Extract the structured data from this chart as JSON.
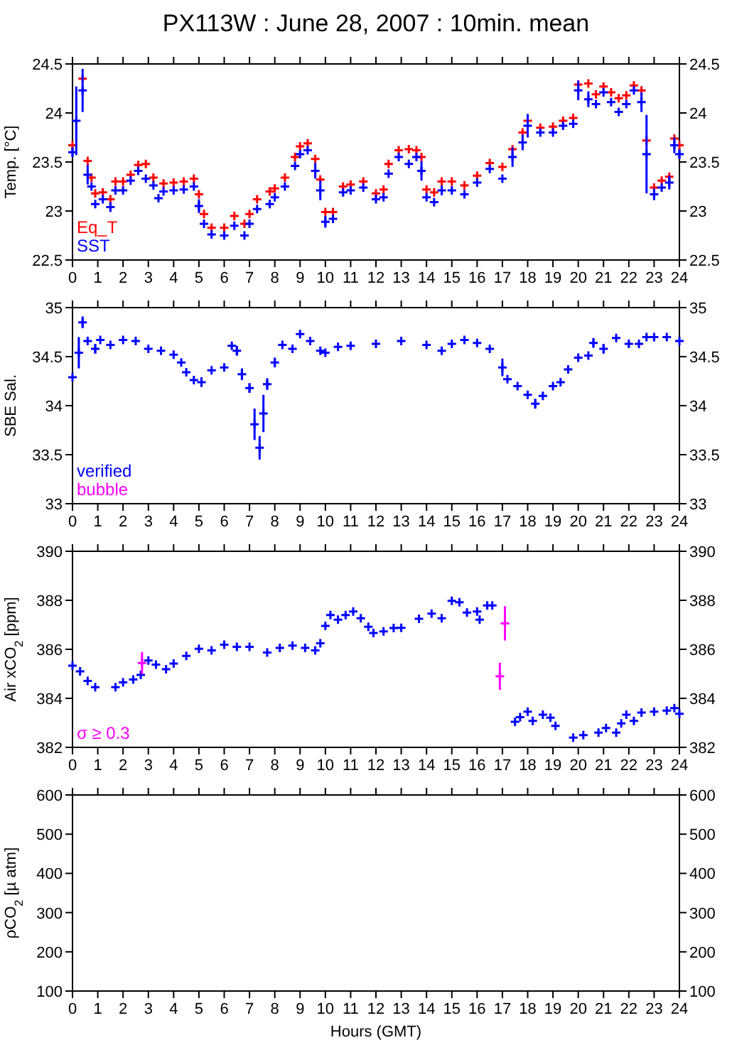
{
  "chart_data": [
    {
      "type": "scatter",
      "title": "PX113W : June 28, 2007 : 10min. mean",
      "ylabel": "Temp. [°C]",
      "marker": "cross",
      "legend": "bottom left",
      "xlim": [
        0,
        24
      ],
      "xticks": [
        0,
        1,
        2,
        3,
        4,
        5,
        6,
        7,
        8,
        9,
        10,
        11,
        12,
        13,
        14,
        15,
        16,
        17,
        18,
        19,
        20,
        21,
        22,
        23,
        24
      ],
      "ylim": [
        22.5,
        24.5
      ],
      "yticks": [
        22.5,
        23,
        23.5,
        24,
        24.5
      ],
      "y2lim": [
        22.5,
        24.5
      ],
      "y2ticks": [
        22.5,
        23,
        23.5,
        24,
        24.5
      ],
      "series": [
        {
          "name": "Eq_T",
          "color": "#ff0000",
          "x": [
            0,
            0.4,
            0.6,
            0.75,
            0.9,
            1.2,
            1.5,
            1.7,
            2.0,
            2.3,
            2.6,
            2.9,
            3.2,
            3.6,
            4.0,
            4.4,
            4.8,
            5.0,
            5.2,
            5.5,
            6.0,
            6.4,
            6.8,
            7.0,
            7.3,
            7.8,
            8.0,
            8.4,
            8.8,
            9.0,
            9.3,
            9.6,
            9.8,
            10.0,
            10.3,
            10.7,
            11.0,
            11.5,
            12.0,
            12.3,
            12.5,
            12.9,
            13.3,
            13.6,
            13.8,
            14.0,
            14.3,
            14.6,
            15.0,
            15.5,
            16.0,
            16.5,
            17.0,
            17.4,
            17.8,
            18.0,
            18.5,
            19.0,
            19.4,
            19.8,
            20.0,
            20.4,
            20.7,
            21.0,
            21.3,
            21.6,
            21.9,
            22.2,
            22.5,
            22.7,
            23.0,
            23.3,
            23.6,
            23.8,
            24
          ],
          "values": [
            23.67,
            24.35,
            23.51,
            23.34,
            23.18,
            23.19,
            23.12,
            23.3,
            23.3,
            23.37,
            23.47,
            23.48,
            23.34,
            23.28,
            23.29,
            23.3,
            23.33,
            23.17,
            22.97,
            22.83,
            22.83,
            22.95,
            22.87,
            22.97,
            23.12,
            23.2,
            23.23,
            23.34,
            23.55,
            23.66,
            23.69,
            23.53,
            23.32,
            22.99,
            22.99,
            23.25,
            23.27,
            23.3,
            23.18,
            23.22,
            23.48,
            23.62,
            23.63,
            23.62,
            23.55,
            23.22,
            23.19,
            23.3,
            23.3,
            23.26,
            23.36,
            23.49,
            23.45,
            23.63,
            23.8,
            23.92,
            23.85,
            23.86,
            23.92,
            23.95,
            24.29,
            24.3,
            24.19,
            24.27,
            24.21,
            24.15,
            24.18,
            24.28,
            24.23,
            23.72,
            23.24,
            23.31,
            23.35,
            23.74,
            23.67
          ]
        },
        {
          "name": "SST",
          "color": "#0000ff",
          "x": [
            0,
            0.15,
            0.4,
            0.6,
            0.75,
            0.9,
            1.2,
            1.5,
            1.7,
            2.0,
            2.3,
            2.6,
            2.9,
            3.2,
            3.4,
            3.6,
            4.0,
            4.4,
            4.8,
            5.0,
            5.2,
            5.5,
            6.0,
            6.4,
            6.8,
            7.0,
            7.3,
            7.8,
            8.0,
            8.4,
            8.8,
            9.0,
            9.3,
            9.6,
            9.8,
            10.0,
            10.3,
            10.7,
            11.0,
            11.5,
            12.0,
            12.3,
            12.5,
            12.9,
            13.3,
            13.6,
            13.8,
            14.0,
            14.3,
            14.6,
            15.0,
            15.5,
            16.0,
            16.5,
            17.0,
            17.4,
            17.8,
            18.0,
            18.5,
            19.0,
            19.4,
            19.8,
            20.0,
            20.4,
            20.7,
            21.0,
            21.3,
            21.6,
            21.9,
            22.2,
            22.5,
            22.7,
            23.0,
            23.3,
            23.6,
            23.8,
            24
          ],
          "values": [
            23.6,
            23.92,
            24.23,
            23.37,
            23.25,
            23.07,
            23.12,
            23.04,
            23.21,
            23.21,
            23.31,
            23.41,
            23.33,
            23.26,
            23.13,
            23.2,
            23.21,
            23.22,
            23.25,
            23.05,
            22.87,
            22.76,
            22.75,
            22.85,
            22.75,
            22.87,
            23.02,
            23.07,
            23.14,
            23.25,
            23.46,
            23.58,
            23.62,
            23.41,
            23.21,
            22.89,
            22.92,
            23.19,
            23.21,
            23.24,
            23.12,
            23.14,
            23.38,
            23.55,
            23.48,
            23.55,
            23.41,
            23.14,
            23.09,
            23.21,
            23.21,
            23.17,
            23.29,
            23.43,
            23.33,
            23.55,
            23.7,
            23.87,
            23.8,
            23.8,
            23.87,
            23.89,
            24.23,
            24.14,
            24.09,
            24.21,
            24.11,
            24.01,
            24.09,
            24.23,
            24.11,
            23.58,
            23.17,
            23.24,
            23.29,
            23.67,
            23.58
          ],
          "errors": [
            0.05,
            0.35,
            0.22,
            0.1,
            null,
            null,
            null,
            0.05,
            null,
            null,
            null,
            null,
            null,
            null,
            null,
            null,
            null,
            null,
            null,
            0.07,
            null,
            null,
            null,
            null,
            null,
            null,
            null,
            null,
            null,
            null,
            null,
            null,
            null,
            0.08,
            0.1,
            0.06,
            null,
            null,
            null,
            null,
            null,
            null,
            null,
            null,
            null,
            null,
            0.1,
            null,
            null,
            0.05,
            null,
            null,
            null,
            null,
            null,
            0.1,
            0.08,
            0.12,
            null,
            null,
            null,
            null,
            0.1,
            0.08,
            null,
            null,
            null,
            null,
            null,
            null,
            0.1,
            0.4,
            0.06,
            null,
            0.07,
            0.08,
            0.05
          ]
        }
      ]
    },
    {
      "type": "scatter",
      "ylabel": "SBE Sal.",
      "marker": "cross",
      "legend": "bottom left",
      "xlim": [
        0,
        24
      ],
      "xticks": [
        0,
        1,
        2,
        3,
        4,
        5,
        6,
        7,
        8,
        9,
        10,
        11,
        12,
        13,
        14,
        15,
        16,
        17,
        18,
        19,
        20,
        21,
        22,
        23,
        24
      ],
      "ylim": [
        33,
        35
      ],
      "yticks": [
        33,
        33.5,
        34,
        34.5,
        35
      ],
      "y2lim": [
        33,
        35
      ],
      "y2ticks": [
        33,
        33.5,
        34,
        34.5,
        35
      ],
      "series": [
        {
          "name": "verified",
          "color": "#0000ff",
          "x": [
            0,
            0.25,
            0.4,
            0.6,
            0.9,
            1.1,
            1.5,
            2,
            2.5,
            3,
            3.5,
            4,
            4.3,
            4.5,
            4.8,
            5.1,
            5.5,
            6,
            6.3,
            6.5,
            6.7,
            7.0,
            7.2,
            7.4,
            7.55,
            7.7,
            8.0,
            8.3,
            8.7,
            9.0,
            9.4,
            9.8,
            10,
            10.5,
            11,
            12,
            13,
            14,
            14.6,
            15,
            15.5,
            16,
            16.5,
            17.0,
            17.2,
            17.6,
            18.0,
            18.3,
            18.6,
            19.0,
            19.3,
            19.6,
            20,
            20.4,
            20.6,
            21,
            21.5,
            22,
            22.4,
            22.7,
            23,
            23.5,
            24
          ],
          "values": [
            34.29,
            34.54,
            34.85,
            34.66,
            34.58,
            34.67,
            34.62,
            34.67,
            34.66,
            34.58,
            34.56,
            34.52,
            34.44,
            34.34,
            34.26,
            34.24,
            34.36,
            34.39,
            34.61,
            34.56,
            34.32,
            34.18,
            33.81,
            33.57,
            33.92,
            34.22,
            34.44,
            34.62,
            34.58,
            34.73,
            34.66,
            34.56,
            34.54,
            34.6,
            34.61,
            34.63,
            34.66,
            34.62,
            34.56,
            34.63,
            34.67,
            34.64,
            34.58,
            34.39,
            34.27,
            34.2,
            34.11,
            34.02,
            34.1,
            34.2,
            34.24,
            34.37,
            34.49,
            34.51,
            34.64,
            34.58,
            34.69,
            34.63,
            34.63,
            34.7,
            34.7,
            34.7,
            34.66
          ],
          "errors": [
            null,
            0.16,
            0.06,
            null,
            0.05,
            null,
            null,
            null,
            null,
            null,
            null,
            null,
            null,
            null,
            null,
            0.05,
            null,
            null,
            null,
            0.05,
            0.06,
            0.05,
            0.16,
            0.12,
            0.19,
            0.06,
            0.05,
            null,
            null,
            null,
            null,
            null,
            null,
            null,
            null,
            null,
            null,
            null,
            null,
            null,
            null,
            null,
            null,
            0.09,
            null,
            null,
            null,
            0.05,
            null,
            null,
            null,
            null,
            null,
            null,
            0.05,
            0.05,
            null,
            null,
            null,
            null,
            null,
            null,
            null
          ]
        },
        {
          "name": "bubble",
          "color": "#ff00ff"
        }
      ]
    },
    {
      "type": "scatter",
      "ylabel": "Air xCO$_{2}$ [ppm]",
      "marker": "cross",
      "legend": "bottom left",
      "xlim": [
        0,
        24
      ],
      "xticks": [
        0,
        1,
        2,
        3,
        4,
        5,
        6,
        7,
        8,
        9,
        10,
        11,
        12,
        13,
        14,
        15,
        16,
        17,
        18,
        19,
        20,
        21,
        22,
        23,
        24
      ],
      "ylim": [
        382,
        390
      ],
      "yticks": [
        382,
        384,
        386,
        388,
        390
      ],
      "y2lim": [
        382,
        390
      ],
      "y2ticks": [
        382,
        384,
        386,
        388,
        390
      ],
      "series": [
        {
          "color": "#0000ff",
          "x": [
            0,
            0.3,
            0.6,
            0.9,
            1.7,
            2.0,
            2.4,
            2.7,
            3.0,
            3.3,
            3.7,
            4.0,
            4.5,
            5.0,
            5.5,
            6.0,
            6.5,
            7.0,
            7.7,
            8.2,
            8.7,
            9.2,
            9.6,
            9.8,
            10.0,
            10.2,
            10.5,
            10.8,
            11.1,
            11.4,
            11.7,
            11.9,
            12.3,
            12.7,
            13.0,
            13.7,
            14.2,
            14.6,
            15.0,
            15.3,
            15.6,
            16,
            16.1,
            16.4,
            16.6,
            17.5,
            17.7,
            18.0,
            18.2,
            18.6,
            18.9,
            19.1,
            19.8,
            20.2,
            20.8,
            21.1,
            21.5,
            21.7,
            21.9,
            22.2,
            22.5,
            23,
            23.5,
            23.8,
            24
          ],
          "values": [
            385.33,
            385.1,
            384.71,
            384.46,
            384.46,
            384.65,
            384.77,
            384.96,
            385.54,
            385.38,
            385.19,
            385.42,
            385.73,
            386.02,
            385.96,
            386.19,
            386.1,
            386.1,
            385.87,
            386.06,
            386.15,
            386.06,
            385.96,
            386.25,
            386.96,
            387.4,
            387.21,
            387.4,
            387.54,
            387.27,
            386.92,
            386.67,
            386.73,
            386.87,
            386.88,
            387.25,
            387.46,
            387.27,
            387.98,
            387.92,
            387.5,
            387.54,
            387.21,
            387.79,
            387.79,
            383.04,
            383.23,
            383.46,
            383.08,
            383.33,
            383.21,
            382.88,
            382.4,
            382.5,
            382.6,
            382.79,
            382.6,
            382.98,
            383.33,
            383.08,
            383.42,
            383.46,
            383.5,
            383.6,
            383.37
          ]
        },
        {
          "name": "σ ≥ 0.3",
          "color": "#ff00ff",
          "x": [
            2.75,
            16.9,
            17.1
          ],
          "values": [
            385.44,
            384.9,
            387.06
          ],
          "errors": [
            0.45,
            0.55,
            0.7
          ]
        }
      ]
    },
    {
      "type": "scatter",
      "ylabel": "ρCO$_{2}$ [µ atm]",
      "xlabel": "Hours (GMT)",
      "xlim": [
        0,
        24
      ],
      "xticks": [
        0,
        1,
        2,
        3,
        4,
        5,
        6,
        7,
        8,
        9,
        10,
        11,
        12,
        13,
        14,
        15,
        16,
        17,
        18,
        19,
        20,
        21,
        22,
        23,
        24
      ],
      "ylim": [
        100,
        600
      ],
      "yticks": [
        100,
        200,
        300,
        400,
        500,
        600
      ],
      "y2lim": [
        100,
        600
      ],
      "y2ticks": [
        100,
        200,
        300,
        400,
        500,
        600
      ]
    }
  ]
}
